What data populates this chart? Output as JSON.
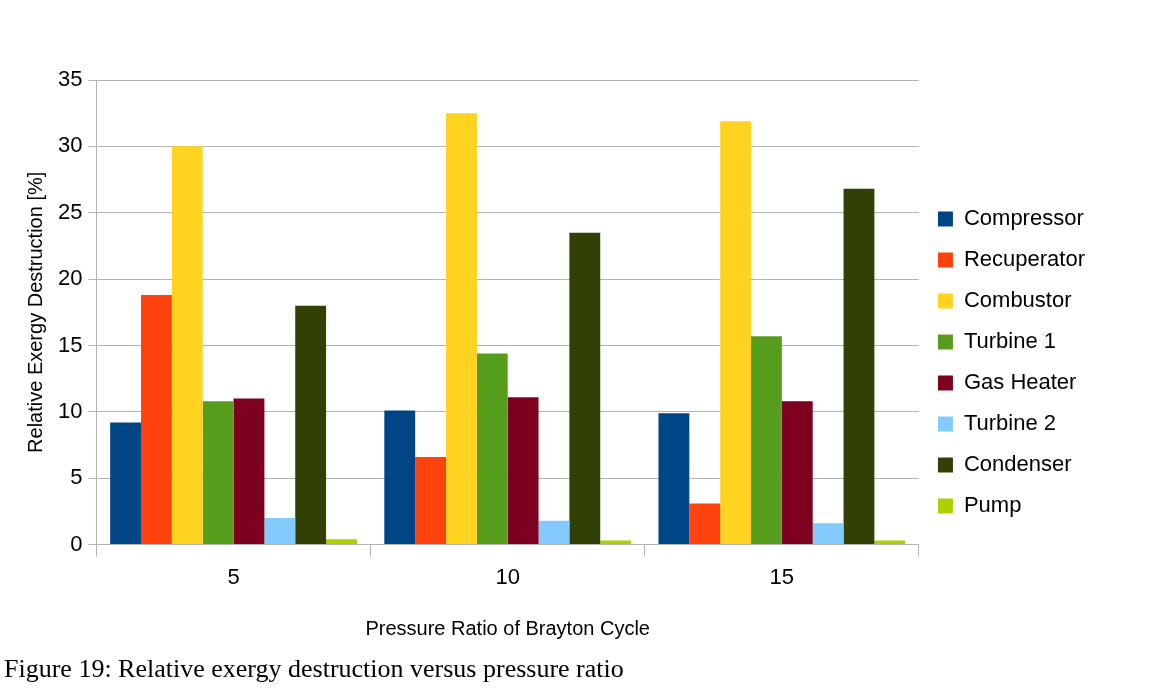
{
  "chart_data": {
    "type": "bar",
    "xlabel": "Pressure Ratio of Brayton Cycle",
    "ylabel": "Relative Exergy Destruction [%]",
    "categories": [
      "5",
      "10",
      "15"
    ],
    "series": [
      {
        "name": "Compressor",
        "color": "#004586",
        "values": [
          9.2,
          10.1,
          9.9
        ]
      },
      {
        "name": "Recuperator",
        "color": "#ff420e",
        "values": [
          18.8,
          6.6,
          3.1
        ]
      },
      {
        "name": "Combustor",
        "color": "#ffd320",
        "values": [
          30.0,
          32.5,
          31.9
        ]
      },
      {
        "name": "Turbine 1",
        "color": "#579d1c",
        "values": [
          10.8,
          14.4,
          15.7
        ]
      },
      {
        "name": "Gas Heater",
        "color": "#7e0021",
        "values": [
          11.0,
          11.1,
          10.8
        ]
      },
      {
        "name": "Turbine 2",
        "color": "#83caff",
        "values": [
          2.0,
          1.8,
          1.6
        ]
      },
      {
        "name": "Condenser",
        "color": "#314004",
        "values": [
          18.0,
          23.5,
          26.8
        ]
      },
      {
        "name": "Pump",
        "color": "#aecf00",
        "values": [
          0.4,
          0.3,
          0.3
        ]
      }
    ],
    "ylim": [
      0,
      35
    ],
    "yticks": [
      0,
      5,
      10,
      15,
      20,
      25,
      30,
      35
    ],
    "grid": "y",
    "legend": "right",
    "annotations": [
      "Figure 19: Relative exergy destruction versus pressure ratio"
    ]
  }
}
